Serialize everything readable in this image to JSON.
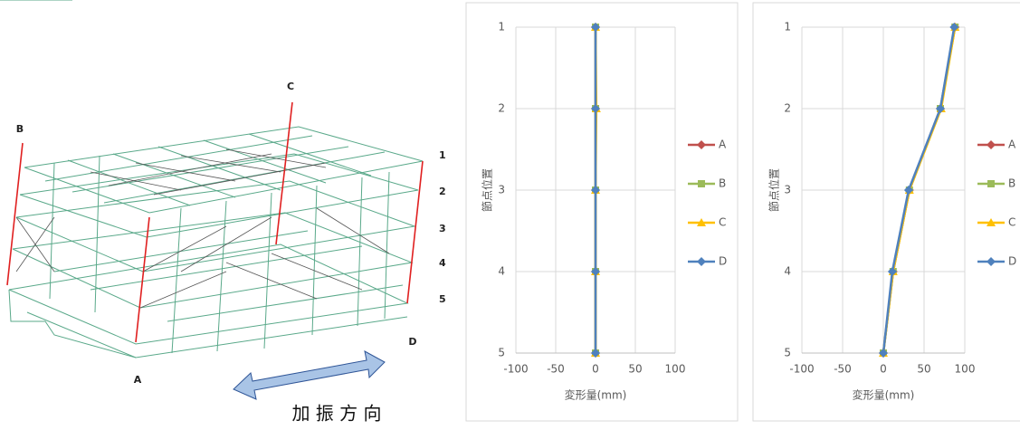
{
  "diagram": {
    "points": [
      "A",
      "B",
      "C",
      "D"
    ],
    "levels": [
      "1",
      "2",
      "3",
      "4",
      "5"
    ],
    "direction": "加 振 方 向"
  },
  "chart_data": [
    {
      "type": "line",
      "orientation": "horizontal",
      "categories": [
        "1",
        "2",
        "3",
        "4",
        "5"
      ],
      "xlim": [
        -100,
        100
      ],
      "xticks": [
        -100,
        -50,
        0,
        50,
        100
      ],
      "x_label": "変形量(mm)",
      "y_label": "節点位置",
      "grid": true,
      "legend": "right",
      "series": [
        {
          "name": "A",
          "color": "#c0504d",
          "marker": "diamond",
          "values": [
            0,
            0,
            0,
            0,
            0
          ]
        },
        {
          "name": "B",
          "color": "#9bbb59",
          "marker": "square",
          "values": [
            0,
            0,
            0,
            0,
            0
          ]
        },
        {
          "name": "C",
          "color": "#ffc000",
          "marker": "triangle",
          "values": [
            0,
            1,
            0,
            0,
            0
          ]
        },
        {
          "name": "D",
          "color": "#4f81bd",
          "marker": "diamond",
          "values": [
            0,
            0,
            0,
            0,
            0
          ]
        }
      ]
    },
    {
      "type": "line",
      "orientation": "horizontal",
      "categories": [
        "1",
        "2",
        "3",
        "4",
        "5"
      ],
      "xlim": [
        -100,
        100
      ],
      "xticks": [
        -100,
        -50,
        0,
        50,
        100
      ],
      "x_label": "変形量(mm)",
      "y_label": "節点位置",
      "grid": true,
      "legend": "right",
      "series": [
        {
          "name": "A",
          "color": "#c0504d",
          "marker": "diamond",
          "values": [
            88,
            70,
            32,
            12,
            0
          ]
        },
        {
          "name": "B",
          "color": "#9bbb59",
          "marker": "square",
          "values": [
            88,
            70,
            32,
            12,
            0
          ]
        },
        {
          "name": "C",
          "color": "#ffc000",
          "marker": "triangle",
          "values": [
            88,
            71,
            32,
            12,
            0
          ]
        },
        {
          "name": "D",
          "color": "#4f81bd",
          "marker": "diamond",
          "values": [
            87,
            70,
            31,
            11,
            0
          ]
        }
      ]
    }
  ]
}
